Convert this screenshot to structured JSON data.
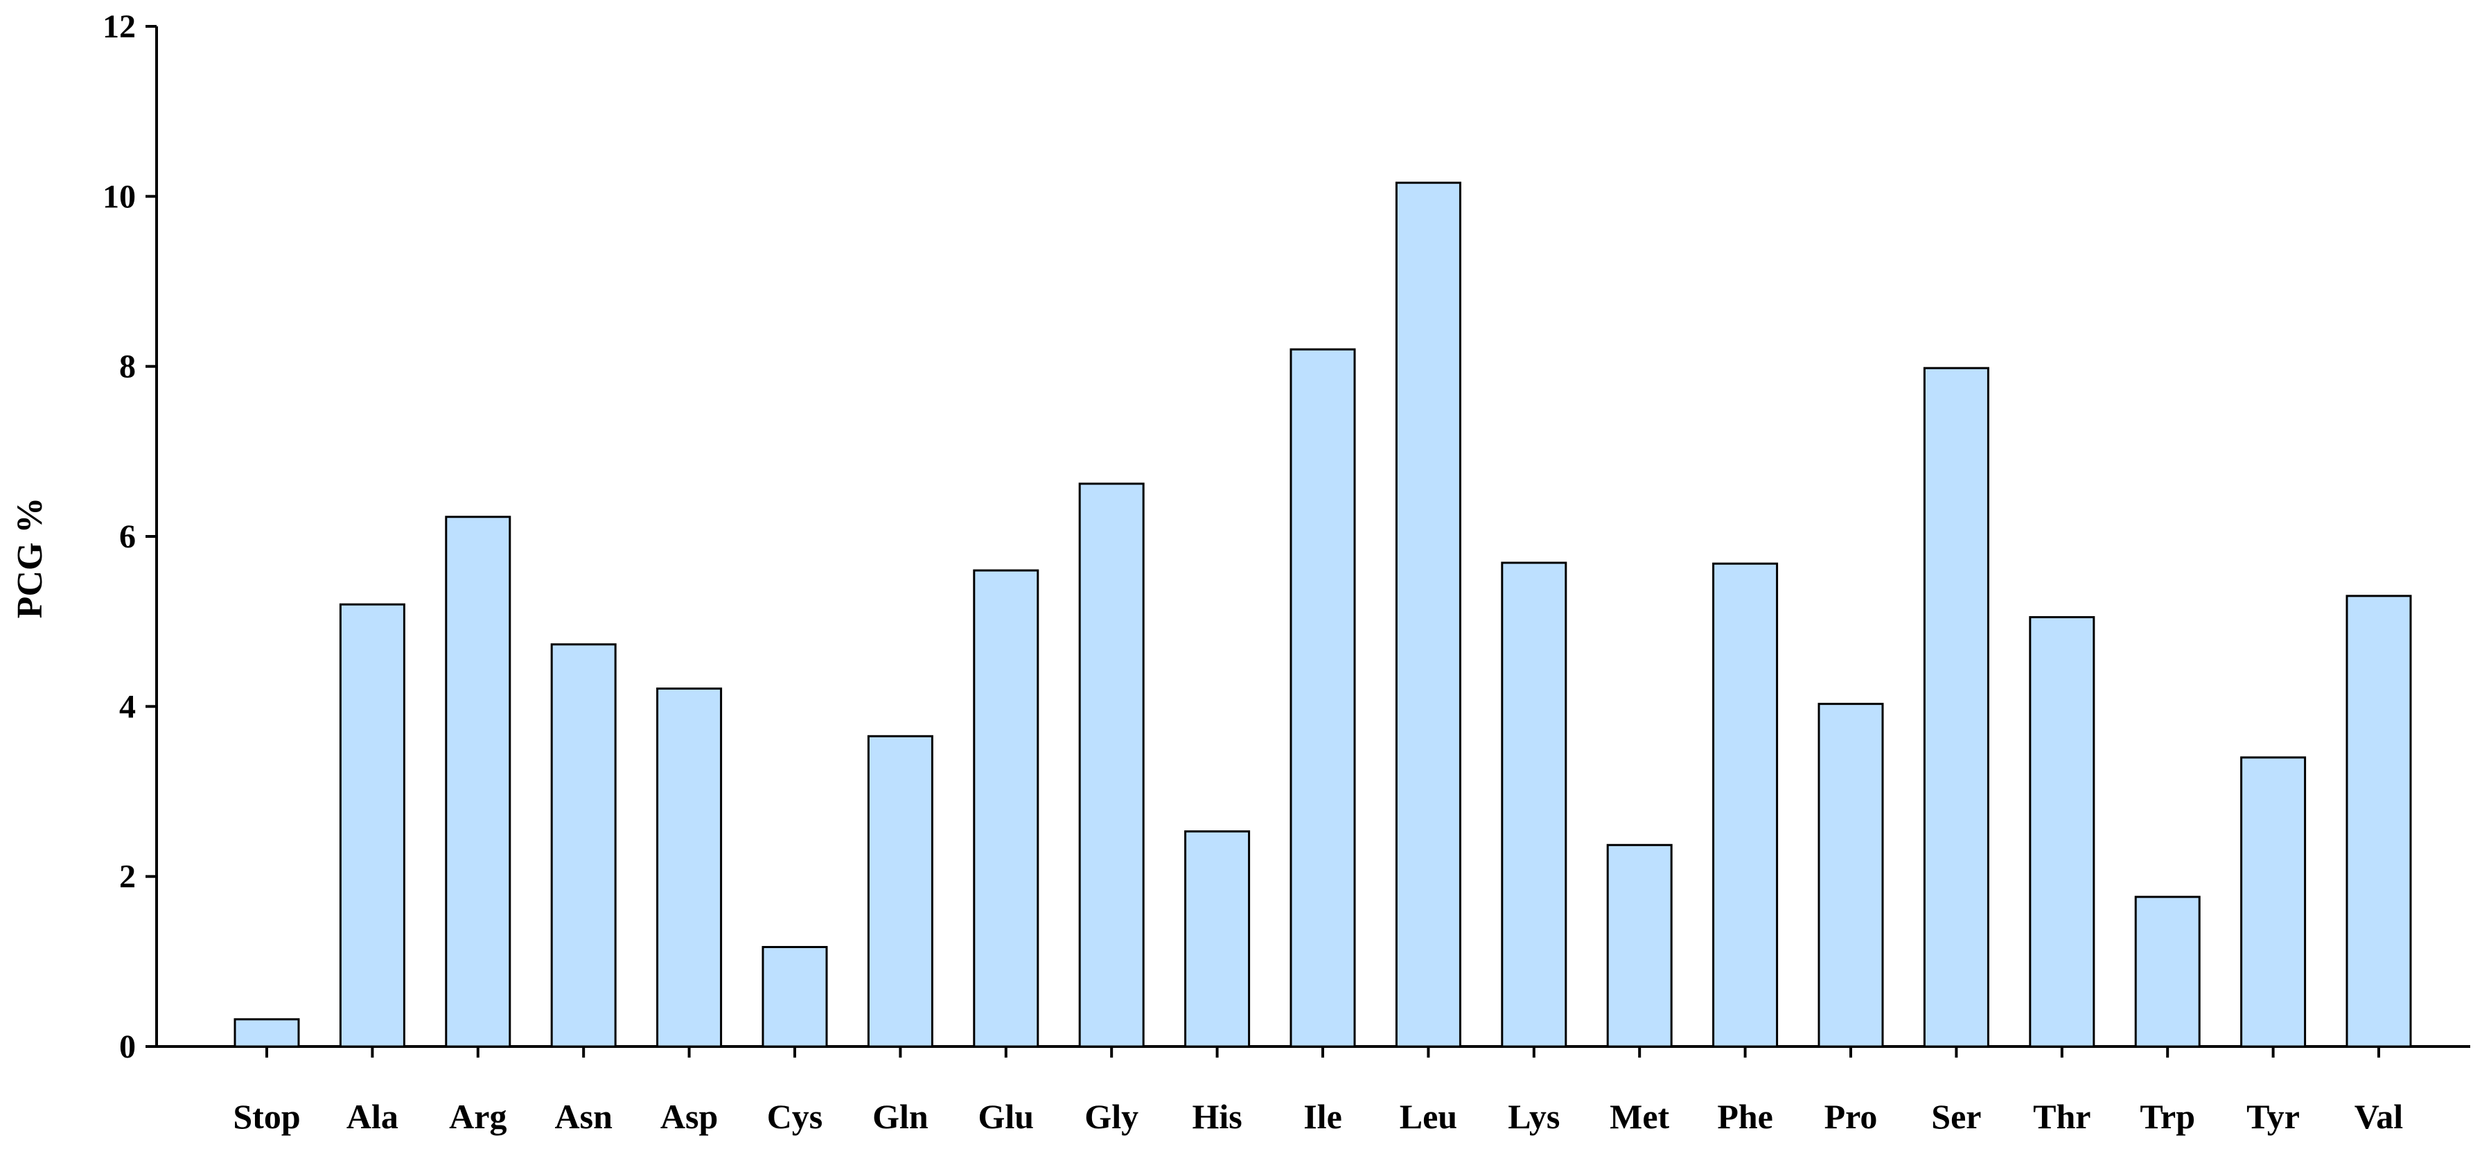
{
  "chart_data": {
    "type": "bar",
    "title": "",
    "xlabel": "",
    "ylabel": "PCG %",
    "ylim": [
      0,
      12
    ],
    "yticks": [
      0,
      2,
      4,
      6,
      8,
      10,
      12
    ],
    "grid": false,
    "categories": [
      "Stop",
      "Ala",
      "Arg",
      "Asn",
      "Asp",
      "Cys",
      "Gln",
      "Glu",
      "Gly",
      "His",
      "Ile",
      "Leu",
      "Lys",
      "Met",
      "Phe",
      "Pro",
      "Ser",
      "Thr",
      "Trp",
      "Tyr",
      "Val"
    ],
    "series": [
      {
        "values": [
          0.32,
          5.2,
          6.23,
          4.73,
          4.21,
          1.17,
          3.65,
          5.6,
          6.62,
          2.53,
          8.2,
          10.16,
          5.69,
          2.37,
          5.68,
          4.03,
          7.98,
          5.05,
          1.76,
          3.4,
          5.3
        ]
      }
    ],
    "colors": {
      "bar_fill": "#bde0ff",
      "bar_stroke": "#000000",
      "axis": "#000000"
    }
  }
}
